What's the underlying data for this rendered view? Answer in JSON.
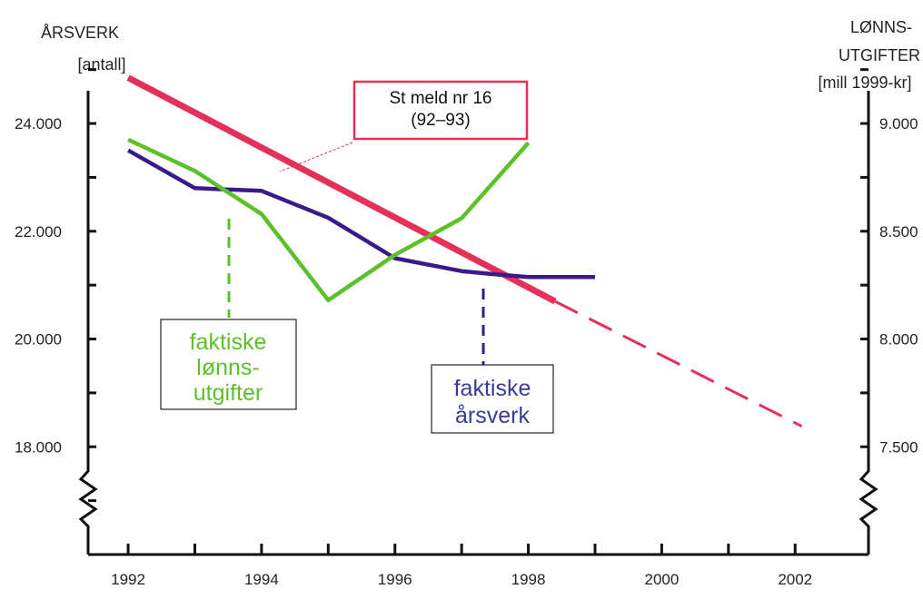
{
  "chart_data": {
    "type": "line",
    "left_axis": {
      "title_lines": [
        "ÅRSVERK",
        "[antall]"
      ],
      "ticks": [
        18000,
        20000,
        22000,
        24000
      ],
      "tick_labels": [
        "18.000",
        "20.000",
        "22.000",
        "24.000"
      ],
      "range": [
        16000,
        25500
      ],
      "axis_break": true
    },
    "right_axis": {
      "title_lines": [
        "LØNNS-",
        "UTGIFTER",
        "[mill 1999-kr]"
      ],
      "ticks": [
        7500,
        8000,
        8500,
        9000
      ],
      "tick_labels": [
        "7.500",
        "8.000",
        "8.500",
        "9.000"
      ],
      "range": [
        7000,
        9375
      ],
      "axis_break": true
    },
    "x_axis": {
      "ticks": [
        1992,
        1994,
        1996,
        1998,
        2000,
        2002
      ],
      "tick_labels": [
        "1992",
        "1994",
        "1996",
        "1998",
        "2000",
        "2002"
      ],
      "minor_ticks": [
        1993,
        1995,
        1997,
        1999,
        2001
      ],
      "range": [
        1991.4,
        2003.1
      ]
    },
    "series": [
      {
        "axis": "left",
        "x": [
          1992,
          1998.4
        ],
        "y": [
          24850,
          20700
        ],
        "color": "#e5305a",
        "style": "solid-thick"
      },
      {
        "axis": "left",
        "x": [
          1998.4,
          2002.1
        ],
        "y": [
          20700,
          18380
        ],
        "color": "#e5305a",
        "style": "dashed"
      },
      {
        "axis": "left",
        "x": [
          1992,
          1993,
          1994,
          1995,
          1996,
          1997,
          1997.5,
          1998,
          1999
        ],
        "y": [
          23500,
          22800,
          22750,
          22250,
          21500,
          21260,
          21200,
          21150,
          21150
        ],
        "color": "#3a1a8a",
        "style": "solid"
      },
      {
        "axis": "right",
        "x": [
          1992,
          1993,
          1994,
          1995,
          1996,
          1997,
          1998
        ],
        "y": [
          8925,
          8780,
          8580,
          8180,
          8390,
          8560,
          8910
        ],
        "color": "#5cc02a",
        "style": "solid"
      }
    ],
    "annotations": [
      {
        "lines": [
          "St meld nr 16",
          "(92–93)"
        ],
        "color": "#e5305a"
      },
      {
        "lines": [
          "faktiske",
          "lønns-",
          "utgifter"
        ],
        "color": "#5cc02a"
      },
      {
        "lines": [
          "faktiske",
          "årsverk"
        ],
        "color": "#3a3a9a"
      }
    ]
  }
}
